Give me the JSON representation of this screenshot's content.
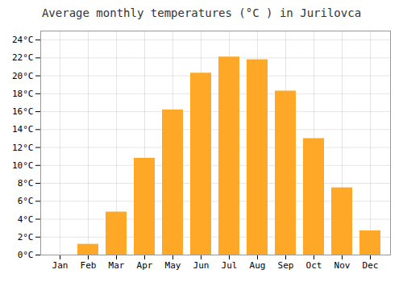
{
  "chart_data": {
    "type": "bar",
    "title": "Average monthly temperatures (°C ) in Jurilovca",
    "categories": [
      "Jan",
      "Feb",
      "Mar",
      "Apr",
      "May",
      "Jun",
      "Jul",
      "Aug",
      "Sep",
      "Oct",
      "Nov",
      "Dec"
    ],
    "values": [
      0.0,
      1.2,
      4.8,
      10.8,
      16.2,
      20.3,
      22.1,
      21.8,
      18.3,
      13.0,
      7.5,
      2.7
    ],
    "color": "#FFA726",
    "ylim": [
      0,
      25
    ],
    "yticks": [
      {
        "value": 0,
        "label": "0°C"
      },
      {
        "value": 2,
        "label": "2°C"
      },
      {
        "value": 4,
        "label": "4°C"
      },
      {
        "value": 6,
        "label": "6°C"
      },
      {
        "value": 8,
        "label": "8°C"
      },
      {
        "value": 10,
        "label": "10°C"
      },
      {
        "value": 12,
        "label": "12°C"
      },
      {
        "value": 14,
        "label": "14°C"
      },
      {
        "value": 16,
        "label": "16°C"
      },
      {
        "value": 18,
        "label": "18°C"
      },
      {
        "value": 20,
        "label": "20°C"
      },
      {
        "value": 22,
        "label": "22°C"
      },
      {
        "value": 24,
        "label": "24°C"
      }
    ],
    "grid": true
  }
}
